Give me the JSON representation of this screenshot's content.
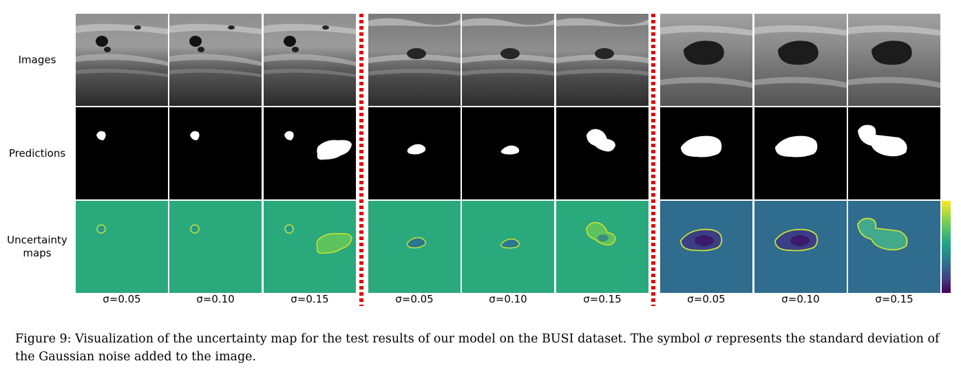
{
  "row_labels": {
    "images": "Images",
    "predictions": "Predictions",
    "uncertainty_line1": "Uncertainty",
    "uncertainty_line2": "maps"
  },
  "sigma_labels": [
    "σ=0.05",
    "σ=0.10",
    "σ=0.15",
    "σ=0.05",
    "σ=0.10",
    "σ=0.15",
    "σ=0.05",
    "σ=0.10",
    "σ=0.15"
  ],
  "caption": {
    "before_symbol": "Figure 9: Visualization of the uncertainty map for the test results of our model on the BUSI dataset. The symbol ",
    "symbol": "σ",
    "after_symbol": " represents the standard deviation of the Gaussian noise added to the image."
  },
  "colors": {
    "divider": "#e00000",
    "prediction_background": "#000000",
    "prediction_mask": "#ffffff",
    "uncertainty_background_groups_1_2": "#2aa97d",
    "uncertainty_background_group_3": "#2f6c8e",
    "uncertainty_lesion_low": "#3b1c6b",
    "uncertainty_boundary_high": "#c8e23a"
  }
}
